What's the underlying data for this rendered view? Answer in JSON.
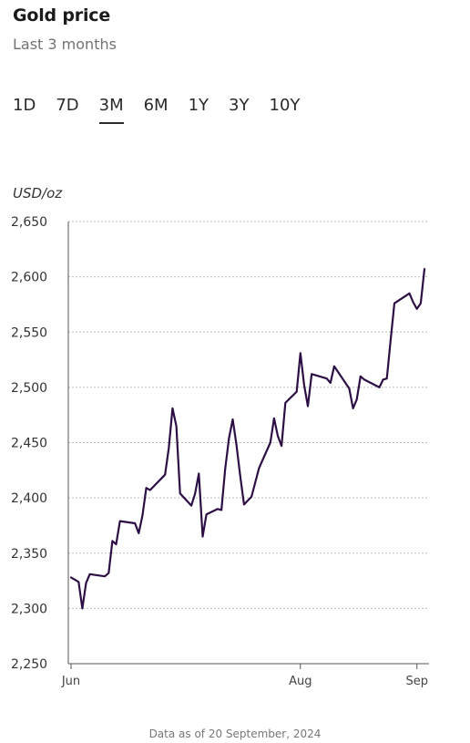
{
  "header": {
    "title": "Gold price",
    "subtitle": "Last 3 months"
  },
  "range_tabs": [
    {
      "label": "1D",
      "active": false
    },
    {
      "label": "7D",
      "active": false
    },
    {
      "label": "3M",
      "active": true
    },
    {
      "label": "6M",
      "active": false
    },
    {
      "label": "1Y",
      "active": false
    },
    {
      "label": "3Y",
      "active": false
    },
    {
      "label": "10Y",
      "active": false
    }
  ],
  "footer": "Data as of 20 September, 2024",
  "colors": {
    "line": "#2d0f45",
    "grid": "#bdbdbd",
    "axis": "#555555"
  },
  "chart_data": {
    "type": "line",
    "ylabel": "USD/oz",
    "ylim": [
      2250,
      2650
    ],
    "yticks": [
      2250,
      2300,
      2350,
      2400,
      2450,
      2500,
      2550,
      2600,
      2650
    ],
    "ytick_labels": [
      "2,250",
      "2,300",
      "2,350",
      "2,400",
      "2,450",
      "2,500",
      "2,550",
      "2,600",
      "2,650"
    ],
    "xlim": [
      "2024-06-01",
      "2024-09-20"
    ],
    "xticks": [
      {
        "date": "2024-06-01",
        "label": "Jun"
      },
      {
        "date": "2024-08-01",
        "label": "Aug"
      },
      {
        "date": "2024-09-01",
        "label": "Sep"
      }
    ],
    "grid": true,
    "series": [
      {
        "points": [
          [
            "2024-06-01",
            2328
          ],
          [
            "2024-06-03",
            2324
          ],
          [
            "2024-06-04",
            2300
          ],
          [
            "2024-06-05",
            2323
          ],
          [
            "2024-06-06",
            2331
          ],
          [
            "2024-06-10",
            2329
          ],
          [
            "2024-06-11",
            2332
          ],
          [
            "2024-06-12",
            2361
          ],
          [
            "2024-06-13",
            2358
          ],
          [
            "2024-06-14",
            2379
          ],
          [
            "2024-06-18",
            2377
          ],
          [
            "2024-06-19",
            2368
          ],
          [
            "2024-06-20",
            2384
          ],
          [
            "2024-06-21",
            2409
          ],
          [
            "2024-06-22",
            2407
          ],
          [
            "2024-06-26",
            2421
          ],
          [
            "2024-06-27",
            2445
          ],
          [
            "2024-06-28",
            2481
          ],
          [
            "2024-06-29",
            2465
          ],
          [
            "2024-06-30",
            2404
          ],
          [
            "2024-07-03",
            2393
          ],
          [
            "2024-07-04",
            2404
          ],
          [
            "2024-07-05",
            2422
          ],
          [
            "2024-07-06",
            2365
          ],
          [
            "2024-07-07",
            2385
          ],
          [
            "2024-07-10",
            2390
          ],
          [
            "2024-07-11",
            2389
          ],
          [
            "2024-07-12",
            2426
          ],
          [
            "2024-07-13",
            2454
          ],
          [
            "2024-07-14",
            2471
          ],
          [
            "2024-07-15",
            2448
          ],
          [
            "2024-07-16",
            2420
          ],
          [
            "2024-07-17",
            2394
          ],
          [
            "2024-07-19",
            2401
          ],
          [
            "2024-07-21",
            2427
          ],
          [
            "2024-07-24",
            2450
          ],
          [
            "2024-07-25",
            2472
          ],
          [
            "2024-07-26",
            2456
          ],
          [
            "2024-07-27",
            2447
          ],
          [
            "2024-07-28",
            2486
          ],
          [
            "2024-07-31",
            2496
          ],
          [
            "2024-08-01",
            2531
          ],
          [
            "2024-08-02",
            2502
          ],
          [
            "2024-08-03",
            2483
          ],
          [
            "2024-08-04",
            2512
          ],
          [
            "2024-08-08",
            2508
          ],
          [
            "2024-08-09",
            2504
          ],
          [
            "2024-08-10",
            2519
          ],
          [
            "2024-08-14",
            2499
          ],
          [
            "2024-08-15",
            2481
          ],
          [
            "2024-08-16",
            2489
          ],
          [
            "2024-08-17",
            2510
          ],
          [
            "2024-08-18",
            2507
          ],
          [
            "2024-08-22",
            2500
          ],
          [
            "2024-08-23",
            2507
          ],
          [
            "2024-08-24",
            2508
          ],
          [
            "2024-08-25",
            2543
          ],
          [
            "2024-08-26",
            2576
          ],
          [
            "2024-08-30",
            2585
          ],
          [
            "2024-08-31",
            2577
          ],
          [
            "2024-09-01",
            2571
          ],
          [
            "2024-09-02",
            2576
          ],
          [
            "2024-09-03",
            2607
          ]
        ]
      }
    ]
  }
}
